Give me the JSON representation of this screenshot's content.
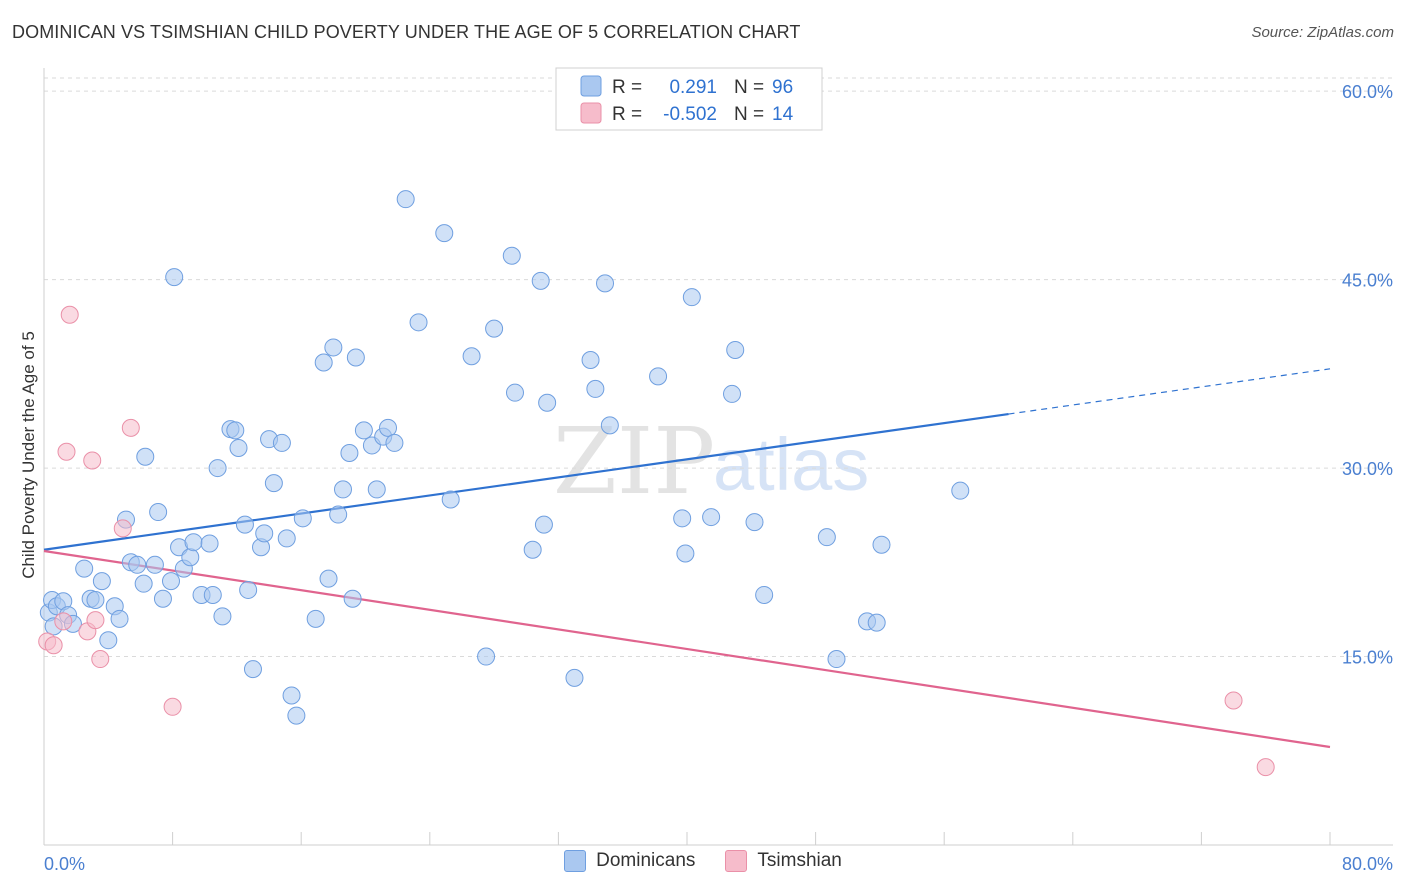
{
  "header": {
    "title": "DOMINICAN VS TSIMSHIAN CHILD POVERTY UNDER THE AGE OF 5 CORRELATION CHART",
    "source": "Source: ZipAtlas.com"
  },
  "watermark": {
    "zip": "ZIP",
    "atlas": "atlas"
  },
  "legend_top": {
    "r_label": "R =",
    "n_label": "N =",
    "rows": [
      {
        "series": "Dominicans",
        "r": "0.291",
        "n": "96"
      },
      {
        "series": "Tsimshian",
        "r": "-0.502",
        "n": "14"
      }
    ]
  },
  "legend_bottom": [
    {
      "label": "Dominicans"
    },
    {
      "label": "Tsimshian"
    }
  ],
  "colors": {
    "dominicans_fill": "#aac8f0",
    "dominicans_stroke": "#6f9fe0",
    "dominicans_line": "#2f72d0",
    "tsimshian_fill": "#f6bccb",
    "tsimshian_stroke": "#ea90a8",
    "tsimshian_line": "#e0648e",
    "tick_text": "#4a7fd0",
    "grid": "#dadada"
  },
  "chart_data": {
    "type": "scatter",
    "title": "DOMINICAN VS TSIMSHIAN CHILD POVERTY UNDER THE AGE OF 5 CORRELATION CHART",
    "xlabel": "",
    "ylabel": "Child Poverty Under the Age of 5",
    "xlim": [
      0,
      80
    ],
    "ylim": [
      0,
      62
    ],
    "x_tick_labels": [
      "0.0%",
      "80.0%"
    ],
    "y_ticks": [
      15,
      30,
      45,
      60
    ],
    "y_tick_labels": [
      "15.0%",
      "30.0%",
      "45.0%",
      "60.0%"
    ],
    "grid": true,
    "series": [
      {
        "name": "Dominicans",
        "points": [
          [
            0.3,
            18.5
          ],
          [
            0.5,
            19.5
          ],
          [
            0.8,
            19.0
          ],
          [
            1.2,
            19.4
          ],
          [
            1.5,
            18.3
          ],
          [
            1.8,
            17.6
          ],
          [
            2.5,
            22.0
          ],
          [
            2.9,
            19.6
          ],
          [
            3.2,
            19.5
          ],
          [
            3.6,
            21.0
          ],
          [
            4.0,
            16.3
          ],
          [
            4.4,
            19.0
          ],
          [
            4.7,
            18.0
          ],
          [
            5.1,
            25.9
          ],
          [
            5.4,
            22.5
          ],
          [
            5.8,
            22.3
          ],
          [
            6.2,
            20.8
          ],
          [
            6.3,
            30.9
          ],
          [
            6.9,
            22.3
          ],
          [
            7.1,
            26.5
          ],
          [
            7.4,
            19.6
          ],
          [
            7.9,
            21.0
          ],
          [
            8.1,
            45.2
          ],
          [
            8.4,
            23.7
          ],
          [
            8.7,
            22.0
          ],
          [
            9.1,
            22.9
          ],
          [
            9.3,
            24.1
          ],
          [
            9.8,
            19.9
          ],
          [
            10.3,
            24.0
          ],
          [
            10.5,
            19.9
          ],
          [
            10.8,
            30.0
          ],
          [
            11.1,
            18.2
          ],
          [
            11.6,
            33.1
          ],
          [
            11.9,
            33.0
          ],
          [
            12.1,
            31.6
          ],
          [
            12.5,
            25.5
          ],
          [
            12.7,
            20.3
          ],
          [
            13.0,
            14.0
          ],
          [
            13.5,
            23.7
          ],
          [
            13.7,
            24.8
          ],
          [
            14.0,
            32.3
          ],
          [
            14.3,
            28.8
          ],
          [
            14.8,
            32.0
          ],
          [
            15.1,
            24.4
          ],
          [
            15.4,
            11.9
          ],
          [
            15.7,
            10.3
          ],
          [
            16.1,
            26.0
          ],
          [
            16.9,
            18.0
          ],
          [
            17.4,
            38.4
          ],
          [
            17.7,
            21.2
          ],
          [
            18.0,
            39.6
          ],
          [
            18.3,
            26.3
          ],
          [
            18.6,
            28.3
          ],
          [
            19.0,
            31.2
          ],
          [
            19.2,
            19.6
          ],
          [
            19.4,
            38.8
          ],
          [
            19.9,
            33.0
          ],
          [
            20.4,
            31.8
          ],
          [
            20.7,
            28.3
          ],
          [
            21.1,
            32.5
          ],
          [
            21.4,
            33.2
          ],
          [
            21.8,
            32.0
          ],
          [
            22.5,
            51.4
          ],
          [
            23.3,
            41.6
          ],
          [
            24.9,
            48.7
          ],
          [
            25.3,
            27.5
          ],
          [
            26.6,
            38.9
          ],
          [
            27.5,
            15.0
          ],
          [
            28.0,
            41.1
          ],
          [
            29.1,
            46.9
          ],
          [
            29.3,
            36.0
          ],
          [
            30.4,
            23.5
          ],
          [
            30.9,
            44.9
          ],
          [
            31.1,
            25.5
          ],
          [
            31.3,
            35.2
          ],
          [
            33.0,
            13.3
          ],
          [
            34.0,
            38.6
          ],
          [
            34.3,
            36.3
          ],
          [
            34.9,
            44.7
          ],
          [
            35.2,
            33.4
          ],
          [
            38.2,
            37.3
          ],
          [
            39.7,
            26.0
          ],
          [
            39.9,
            23.2
          ],
          [
            40.3,
            43.6
          ],
          [
            41.5,
            26.1
          ],
          [
            42.8,
            35.9
          ],
          [
            43.0,
            39.4
          ],
          [
            44.2,
            25.7
          ],
          [
            44.8,
            19.9
          ],
          [
            48.7,
            24.5
          ],
          [
            49.3,
            14.8
          ],
          [
            51.2,
            17.8
          ],
          [
            51.8,
            17.7
          ],
          [
            52.1,
            23.9
          ],
          [
            57.0,
            28.2
          ],
          [
            0.6,
            17.4
          ]
        ],
        "trend": {
          "x": [
            0,
            60
          ],
          "y": [
            23.5,
            34.3
          ],
          "dashed_extension": {
            "x": [
              60,
              80
            ],
            "y": [
              34.3,
              37.9
            ]
          }
        }
      },
      {
        "name": "Tsimshian",
        "points": [
          [
            0.2,
            16.2
          ],
          [
            0.6,
            15.9
          ],
          [
            1.2,
            17.8
          ],
          [
            1.6,
            42.2
          ],
          [
            1.4,
            31.3
          ],
          [
            2.7,
            17.0
          ],
          [
            3.0,
            30.6
          ],
          [
            3.2,
            17.9
          ],
          [
            3.5,
            14.8
          ],
          [
            4.9,
            25.2
          ],
          [
            5.4,
            33.2
          ],
          [
            8.0,
            11.0
          ],
          [
            74.0,
            11.5
          ],
          [
            76.0,
            6.2
          ]
        ],
        "trend": {
          "x": [
            0,
            80
          ],
          "y": [
            23.4,
            7.8
          ]
        }
      }
    ]
  }
}
